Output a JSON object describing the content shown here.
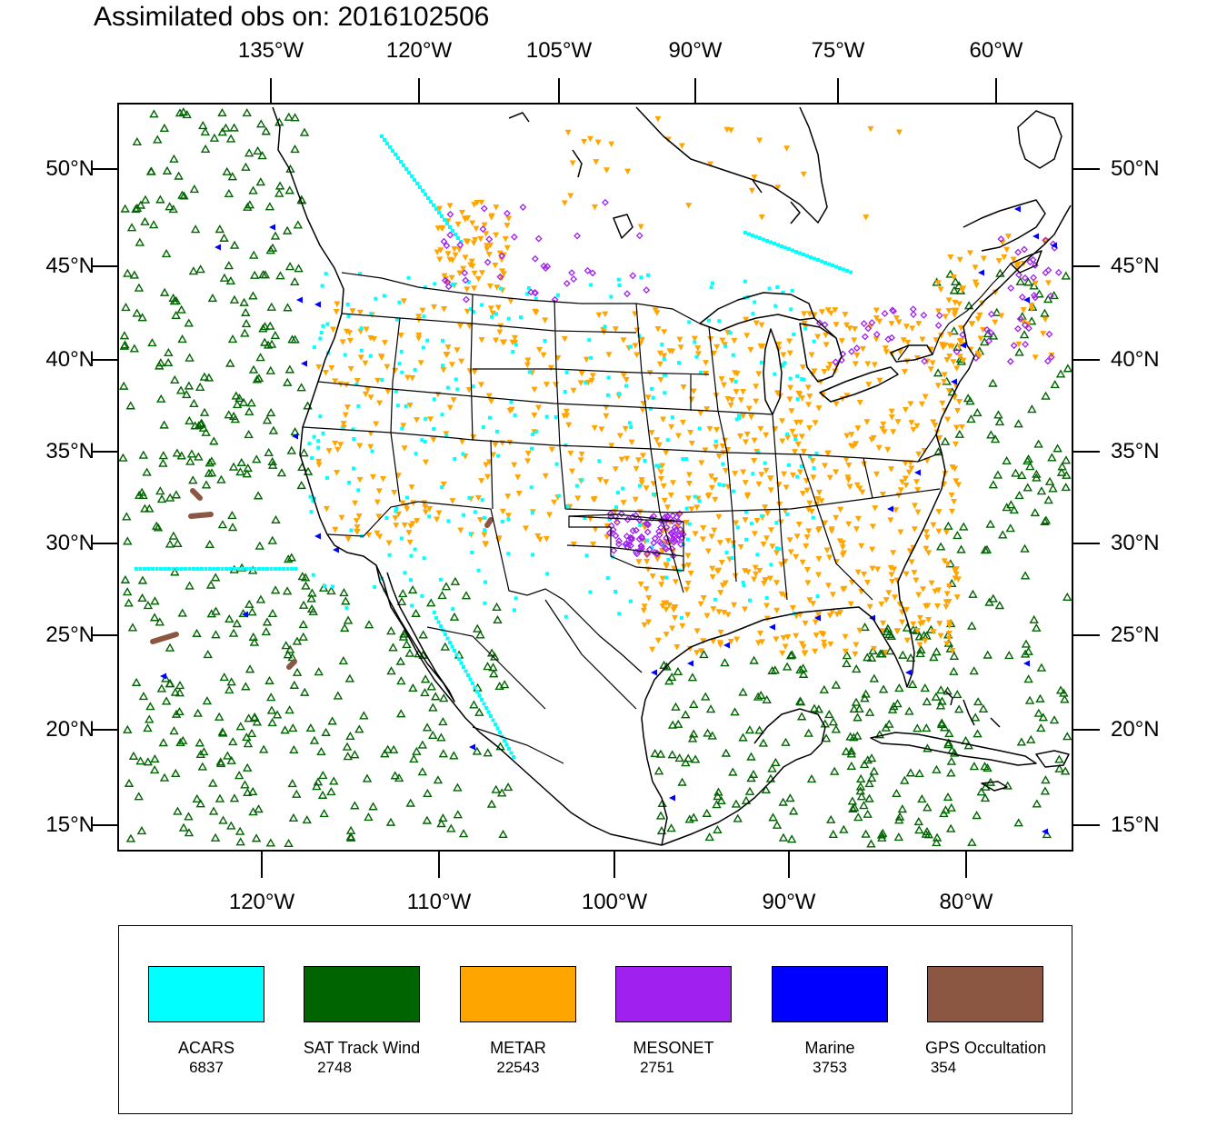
{
  "title": "Assimilated obs on: 2016102506",
  "map": {
    "top_axis_labels": [
      "135°W",
      "120°W",
      "105°W",
      "90°W",
      "75°W",
      "60°W"
    ],
    "bottom_axis_labels": [
      "120°W",
      "110°W",
      "100°W",
      "90°W",
      "80°W"
    ],
    "left_axis_labels": [
      "50°N",
      "45°N",
      "40°N",
      "35°N",
      "30°N",
      "25°N",
      "20°N",
      "15°N"
    ],
    "right_axis_labels": [
      "50°N",
      "45°N",
      "40°N",
      "35°N",
      "30°N",
      "25°N",
      "20°N",
      "15°N"
    ],
    "lat_range": [
      14,
      53.5
    ],
    "lon_range_bottom": [
      -128,
      -74
    ],
    "land_color": "#ffffff",
    "ocean_color": "#ffffff"
  },
  "legend": {
    "items": [
      {
        "name": "ACARS",
        "count": "6837",
        "color": "#00ffff",
        "marker": "square"
      },
      {
        "name": "SAT Track Wind",
        "count": "2748",
        "color": "#006400",
        "marker": "hollow-triangle-up"
      },
      {
        "name": "METAR",
        "count": "22543",
        "color": "#ffa500",
        "marker": "triangle-down"
      },
      {
        "name": "MESONET",
        "count": "2751",
        "color": "#a020f0",
        "marker": "hollow-diamond"
      },
      {
        "name": "Marine",
        "count": "3753",
        "color": "#0000ff",
        "marker": "triangle-left"
      },
      {
        "name": "GPS Occultation",
        "count": "354",
        "color": "#8b5742",
        "marker": "dot"
      }
    ]
  }
}
